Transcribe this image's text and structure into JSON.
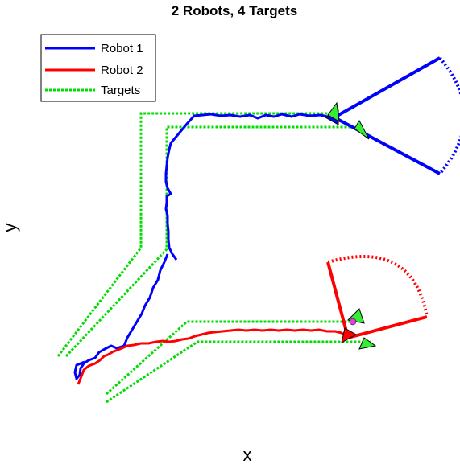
{
  "chart_data": {
    "type": "line",
    "title": "2 Robots, 4 Targets",
    "xlabel": "x",
    "ylabel": "y",
    "grid": false,
    "axes_visible": false,
    "legend_position": "top-left",
    "series": [
      {
        "name": "Robot 1",
        "color": "#0000ff",
        "style": "solid"
      },
      {
        "name": "Robot 2",
        "color": "#ff0000",
        "style": "solid"
      },
      {
        "name": "Targets",
        "color": "#00dd00",
        "style": "dotted"
      }
    ],
    "robots": [
      {
        "name": "Robot 1",
        "color": "#0000ff",
        "heading_deg": 180,
        "sensor_fov": "cone with dotted arc"
      },
      {
        "name": "Robot 2",
        "color": "#ff0000",
        "heading_deg": 225,
        "sensor_fov": "cone with dotted arc"
      }
    ],
    "targets": {
      "count": 4,
      "marker_color": "#33ee33",
      "marker_shape": "triangle"
    }
  }
}
